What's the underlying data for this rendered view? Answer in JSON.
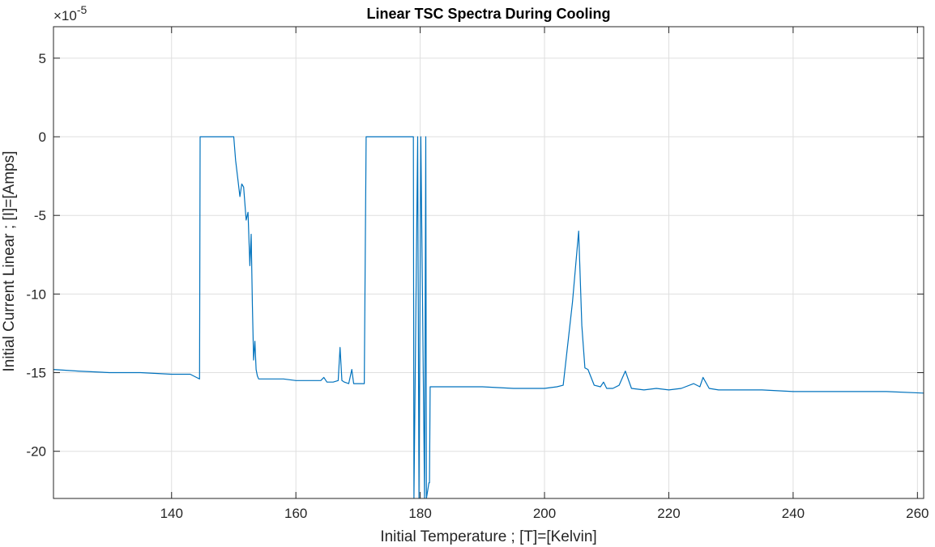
{
  "chart_data": {
    "type": "line",
    "title": "Linear TSC Spectra During Cooling",
    "xlabel": "Initial Temperature ; [T]=[Kelvin]",
    "ylabel": "Initial Current Linear ; [I]=[Amps]",
    "y_multiplier_base": "×10",
    "y_multiplier_exp": "-5",
    "xlim": [
      121,
      261
    ],
    "ylim": [
      -23,
      7
    ],
    "xticks": [
      140,
      160,
      180,
      200,
      220,
      240,
      260
    ],
    "xtick_labels": [
      "140",
      "160",
      "180",
      "200",
      "220",
      "240",
      "260"
    ],
    "yticks": [
      5,
      0,
      -5,
      -10,
      -15,
      -20
    ],
    "ytick_labels": [
      "5",
      "0",
      "-5",
      "-10",
      "-15",
      "-20"
    ],
    "grid": true,
    "series_color": "#0072BD",
    "series": [
      {
        "x": [
          121,
          125,
          130,
          135,
          140,
          143,
          144,
          144.5,
          144.6,
          147,
          150,
          150.3,
          150.6,
          151,
          151.3,
          151.6,
          152,
          152.3,
          152.6,
          152.8,
          153.0,
          153.2,
          153.4,
          153.6,
          153.8,
          154.0,
          154.2,
          154.5,
          155,
          158,
          160,
          162,
          164,
          164.5,
          165,
          166,
          166.8,
          167.1,
          167.4,
          167.8,
          168.5,
          169.0,
          169.3,
          169.6,
          170,
          171,
          171.3,
          175,
          178.9,
          179.0,
          179.6,
          179.8,
          180.1,
          180.7,
          180.9,
          181,
          181.4,
          181.5,
          181.6,
          184,
          190,
          195,
          198,
          200,
          202,
          203,
          204.5,
          205.5,
          206,
          206.5,
          207,
          208,
          209,
          209.5,
          210,
          211,
          212,
          213,
          214,
          216,
          218,
          220,
          222,
          224,
          225,
          225.5,
          226.5,
          228,
          230,
          235,
          240,
          245,
          250,
          255,
          261
        ],
        "y": [
          -14.8,
          -14.9,
          -15.0,
          -15.0,
          -15.1,
          -15.1,
          -15.3,
          -15.4,
          0,
          0,
          0,
          -1.5,
          -2.5,
          -3.8,
          -3.0,
          -3.2,
          -5.3,
          -4.8,
          -8.2,
          -6.2,
          -10.7,
          -14.2,
          -13.0,
          -14.8,
          -15.2,
          -15.4,
          -15.4,
          -15.4,
          -15.4,
          -15.4,
          -15.5,
          -15.5,
          -15.5,
          -15.3,
          -15.6,
          -15.6,
          -15.5,
          -13.4,
          -15.5,
          -15.6,
          -15.7,
          -14.8,
          -15.7,
          -15.7,
          -15.7,
          -15.7,
          0,
          0,
          0,
          -23,
          0,
          -23,
          0,
          -23,
          0,
          -23,
          -22,
          -22,
          -15.9,
          -15.9,
          -15.9,
          -16.0,
          -16.0,
          -16.0,
          -15.9,
          -15.8,
          -10.5,
          -6.0,
          -12.0,
          -14.7,
          -14.8,
          -15.8,
          -15.9,
          -15.6,
          -16.0,
          -16.0,
          -15.8,
          -14.9,
          -16.0,
          -16.1,
          -16.0,
          -16.1,
          -16.0,
          -15.7,
          -15.9,
          -15.3,
          -16.0,
          -16.1,
          -16.1,
          -16.1,
          -16.2,
          -16.2,
          -16.2,
          -16.2,
          -16.3
        ]
      }
    ]
  }
}
